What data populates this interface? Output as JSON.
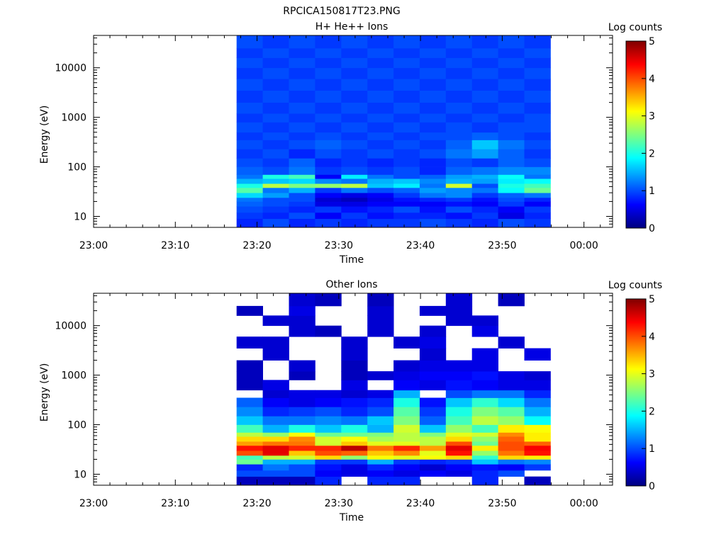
{
  "figure_title": "RPCICA150817T23.PNG",
  "colorbar_label": "Log counts",
  "colormap": [
    "#00007f",
    "#0000ff",
    "#007fff",
    "#00ffff",
    "#7fff7f",
    "#ffff00",
    "#ff7f00",
    "#ff0000",
    "#7f0000"
  ],
  "chart_data": [
    {
      "type": "heatmap",
      "title": "H+ He++ Ions",
      "xlabel": "Time",
      "ylabel": "Energy (eV)",
      "x_ticks": [
        "23:00",
        "23:10",
        "23:20",
        "23:30",
        "23:40",
        "23:50",
        "00:00"
      ],
      "x_tick_minutes": [
        0,
        10,
        20,
        30,
        40,
        50,
        60
      ],
      "xlim_minutes": [
        0,
        63.5
      ],
      "ylim": [
        6,
        45000
      ],
      "y_scale": "log",
      "y_ticks": [
        10,
        100,
        1000,
        10000
      ],
      "y_tick_labels": [
        "10",
        "100",
        "1000",
        "10000"
      ],
      "colorbar_range": [
        0,
        5
      ],
      "colorbar_ticks": [
        "0",
        "1",
        "2",
        "3",
        "4",
        "5"
      ],
      "time_start_minutes": 17.5,
      "column_width_minutes": 3.2,
      "columns": 12,
      "energy_bins": [
        [
          6,
          9
        ],
        [
          9,
          12
        ],
        [
          12,
          16
        ],
        [
          16,
          20
        ],
        [
          20,
          24
        ],
        [
          24,
          30
        ],
        [
          30,
          38
        ],
        [
          38,
          46
        ],
        [
          46,
          58
        ],
        [
          58,
          70
        ],
        [
          70,
          100
        ],
        [
          100,
          150
        ],
        [
          150,
          230
        ],
        [
          230,
          350
        ],
        [
          350,
          500
        ],
        [
          500,
          800
        ],
        [
          800,
          1200
        ],
        [
          1200,
          2000
        ],
        [
          2000,
          3500
        ],
        [
          3500,
          6000
        ],
        [
          6000,
          10000
        ],
        [
          10000,
          16000
        ],
        [
          16000,
          25000
        ],
        [
          25000,
          45000
        ]
      ],
      "values": [
        [
          0.8,
          1.0,
          0.8,
          0.9,
          0.8,
          0.9,
          0.9,
          1.0,
          0.9,
          0.8,
          1.0,
          0.9
        ],
        [
          0.9,
          0.8,
          1.0,
          0.6,
          0.9,
          0.7,
          0.8,
          0.8,
          0.7,
          0.9,
          0.5,
          0.8
        ],
        [
          1.0,
          0.9,
          0.8,
          0.9,
          0.7,
          0.8,
          1.0,
          0.7,
          1.0,
          0.8,
          0.6,
          0.9
        ],
        [
          1.1,
          1.0,
          0.9,
          0.5,
          0.5,
          0.6,
          0.6,
          0.6,
          0.7,
          0.6,
          0.9,
          0.6
        ],
        [
          1.2,
          1.0,
          1.0,
          0.4,
          0.3,
          0.5,
          0.7,
          0.8,
          0.9,
          0.7,
          1.0,
          0.8
        ],
        [
          1.7,
          1.4,
          1.0,
          0.6,
          0.5,
          0.6,
          0.9,
          1.2,
          1.3,
          0.9,
          1.1,
          1.2
        ],
        [
          2.3,
          1.2,
          1.5,
          0.9,
          1.2,
          1.0,
          1.1,
          1.4,
          1.3,
          1.2,
          1.9,
          2.4
        ],
        [
          2.0,
          2.8,
          2.5,
          2.6,
          2.8,
          1.6,
          1.8,
          1.2,
          2.9,
          1.0,
          2.0,
          2.2
        ],
        [
          1.5,
          1.6,
          1.7,
          1.3,
          1.2,
          1.5,
          1.6,
          1.3,
          1.5,
          1.4,
          1.8,
          1.9
        ],
        [
          1.2,
          2.0,
          2.2,
          0.6,
          1.8,
          1.2,
          1.0,
          1.1,
          1.4,
          1.5,
          1.9,
          1.2
        ],
        [
          1.1,
          1.0,
          1.2,
          0.9,
          1.0,
          0.9,
          1.0,
          0.8,
          1.1,
          1.2,
          1.3,
          1.3
        ],
        [
          1.0,
          0.9,
          1.1,
          0.8,
          0.9,
          0.8,
          0.9,
          0.8,
          1.0,
          0.9,
          1.1,
          1.0
        ],
        [
          0.9,
          1.0,
          0.8,
          1.0,
          0.9,
          1.0,
          0.9,
          1.0,
          1.2,
          1.4,
          1.1,
          0.9
        ],
        [
          1.0,
          0.9,
          1.0,
          1.1,
          1.0,
          0.9,
          1.0,
          0.9,
          1.1,
          1.6,
          1.2,
          1.0
        ],
        [
          0.9,
          1.0,
          0.9,
          1.0,
          0.9,
          1.0,
          0.9,
          1.0,
          1.0,
          1.1,
          1.0,
          0.9
        ],
        [
          1.0,
          0.9,
          1.0,
          0.9,
          1.0,
          0.9,
          1.0,
          0.9,
          1.0,
          0.9,
          1.0,
          1.0
        ],
        [
          0.9,
          1.0,
          0.9,
          1.0,
          0.9,
          1.0,
          0.9,
          1.0,
          0.9,
          1.0,
          0.9,
          1.0
        ],
        [
          1.0,
          0.9,
          1.0,
          0.9,
          1.0,
          0.9,
          1.0,
          0.9,
          1.0,
          0.9,
          1.0,
          0.9
        ],
        [
          0.9,
          1.0,
          0.9,
          1.0,
          0.9,
          1.0,
          0.9,
          1.0,
          0.9,
          1.0,
          0.9,
          1.0
        ],
        [
          1.0,
          0.9,
          1.0,
          0.9,
          1.0,
          0.9,
          1.0,
          0.9,
          1.0,
          0.9,
          1.0,
          0.9
        ],
        [
          0.9,
          1.0,
          0.9,
          1.0,
          0.9,
          1.0,
          0.9,
          1.0,
          0.9,
          1.0,
          0.9,
          1.0
        ],
        [
          1.0,
          0.9,
          1.0,
          0.9,
          1.0,
          0.9,
          1.0,
          0.9,
          1.0,
          0.9,
          1.0,
          0.9
        ],
        [
          0.9,
          1.0,
          0.9,
          1.0,
          0.9,
          1.0,
          0.9,
          1.0,
          0.9,
          1.0,
          0.9,
          1.0
        ],
        [
          1.0,
          0.9,
          1.0,
          0.9,
          1.0,
          0.9,
          1.0,
          0.9,
          1.0,
          0.9,
          1.0,
          0.9
        ]
      ]
    },
    {
      "type": "heatmap",
      "title": "Other Ions",
      "xlabel": "Time",
      "ylabel": "Energy (eV)",
      "x_ticks": [
        "23:00",
        "23:10",
        "23:20",
        "23:30",
        "23:40",
        "23:50",
        "00:00"
      ],
      "x_tick_minutes": [
        0,
        10,
        20,
        30,
        40,
        50,
        60
      ],
      "xlim_minutes": [
        0,
        63.5
      ],
      "ylim": [
        6,
        45000
      ],
      "y_scale": "log",
      "y_ticks": [
        10,
        100,
        1000,
        10000
      ],
      "y_tick_labels": [
        "10",
        "100",
        "1000",
        "10000"
      ],
      "colorbar_range": [
        0,
        5
      ],
      "colorbar_ticks": [
        "0",
        "1",
        "2",
        "3",
        "4",
        "5"
      ],
      "time_start_minutes": 17.5,
      "column_width_minutes": 3.2,
      "columns": 12,
      "energy_bins": [
        [
          6,
          9
        ],
        [
          9,
          12
        ],
        [
          12,
          16
        ],
        [
          16,
          20
        ],
        [
          20,
          24
        ],
        [
          24,
          30
        ],
        [
          30,
          38
        ],
        [
          38,
          46
        ],
        [
          46,
          58
        ],
        [
          58,
          70
        ],
        [
          70,
          100
        ],
        [
          100,
          150
        ],
        [
          150,
          230
        ],
        [
          230,
          350
        ],
        [
          350,
          500
        ],
        [
          500,
          800
        ],
        [
          800,
          1200
        ],
        [
          1200,
          2000
        ],
        [
          2000,
          3500
        ],
        [
          3500,
          6000
        ],
        [
          6000,
          10000
        ],
        [
          10000,
          16000
        ],
        [
          16000,
          25000
        ],
        [
          25000,
          45000
        ]
      ],
      "values": [
        [
          0.3,
          0.3,
          0.3,
          0.8,
          null,
          0.8,
          0.8,
          null,
          null,
          0.8,
          null,
          0.3
        ],
        [
          1.0,
          1.0,
          1.0,
          0.6,
          0.5,
          0.6,
          0.5,
          0.6,
          0.5,
          0.8,
          1.0,
          null
        ],
        [
          0.8,
          1.2,
          1.0,
          0.7,
          0.5,
          0.8,
          0.6,
          0.4,
          0.6,
          0.7,
          0.6,
          0.9
        ],
        [
          2.4,
          1.5,
          1.5,
          0.9,
          0.9,
          1.5,
          0.9,
          0.8,
          0.9,
          1.6,
          1.2,
          1.3
        ],
        [
          2.2,
          2.8,
          2.9,
          3.3,
          2.6,
          3.1,
          3.0,
          3.1,
          3.3,
          2.1,
          3.3,
          3.2
        ],
        [
          4.0,
          4.5,
          3.4,
          4.0,
          3.9,
          3.4,
          3.7,
          3.0,
          4.3,
          2.6,
          3.8,
          4.3
        ],
        [
          4.3,
          4.5,
          4.2,
          4.2,
          4.7,
          3.8,
          4.2,
          3.6,
          4.5,
          3.2,
          4.0,
          4.4
        ],
        [
          3.6,
          3.8,
          3.8,
          2.9,
          3.4,
          3.0,
          3.0,
          2.8,
          4.0,
          2.4,
          4.0,
          3.9
        ],
        [
          3.3,
          3.3,
          3.7,
          2.9,
          3.1,
          2.7,
          2.8,
          2.8,
          3.3,
          2.6,
          3.9,
          3.2
        ],
        [
          2.8,
          2.6,
          3.1,
          2.4,
          2.4,
          2.5,
          2.8,
          2.5,
          3.0,
          2.9,
          3.7,
          3.2
        ],
        [
          2.2,
          1.5,
          2.0,
          1.6,
          2.0,
          1.5,
          2.9,
          1.6,
          2.6,
          2.2,
          3.2,
          3.1
        ],
        [
          1.6,
          1.2,
          1.2,
          1.3,
          1.2,
          1.6,
          2.5,
          1.1,
          2.2,
          2.8,
          2.6,
          1.9
        ],
        [
          1.3,
          0.8,
          0.9,
          1.0,
          0.8,
          1.0,
          2.3,
          0.9,
          2.0,
          2.5,
          2.3,
          1.5
        ],
        [
          1.1,
          0.6,
          0.5,
          0.6,
          0.7,
          0.8,
          2.0,
          0.7,
          1.6,
          2.1,
          1.7,
          1.2
        ],
        [
          null,
          0.4,
          0.5,
          0.5,
          0.4,
          0.5,
          1.5,
          null,
          1.0,
          1.2,
          1.2,
          0.8
        ],
        [
          0.3,
          0.5,
          null,
          null,
          0.5,
          null,
          0.6,
          0.5,
          0.7,
          0.6,
          0.5,
          0.5
        ],
        [
          0.3,
          null,
          0.3,
          null,
          0.3,
          0.4,
          0.5,
          0.6,
          0.6,
          0.7,
          0.5,
          0.4
        ],
        [
          0.3,
          null,
          0.4,
          null,
          0.3,
          null,
          0.4,
          0.5,
          0.5,
          0.5,
          null,
          null
        ],
        [
          null,
          0.4,
          null,
          null,
          0.4,
          null,
          null,
          0.4,
          null,
          0.5,
          null,
          0.5
        ],
        [
          0.4,
          0.4,
          null,
          null,
          0.4,
          null,
          0.4,
          0.5,
          null,
          null,
          0.4,
          null
        ],
        [
          null,
          null,
          0.4,
          0.3,
          null,
          0.4,
          null,
          0.4,
          null,
          0.5,
          null,
          null
        ],
        [
          null,
          0.4,
          0.4,
          null,
          null,
          0.4,
          null,
          null,
          0.4,
          0.4,
          null,
          null
        ],
        [
          0.3,
          null,
          0.5,
          null,
          null,
          0.4,
          null,
          0.4,
          0.4,
          null,
          null,
          null
        ],
        [
          null,
          null,
          0.4,
          0.3,
          null,
          0.3,
          null,
          null,
          0.4,
          null,
          0.3,
          null
        ]
      ]
    }
  ]
}
